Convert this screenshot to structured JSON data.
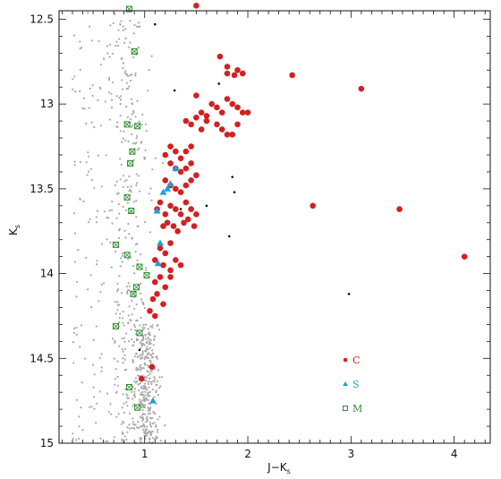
{
  "chart_data": {
    "type": "scatter",
    "title": "",
    "xlabel": {
      "main": "J−K",
      "sub": "s"
    },
    "ylabel": {
      "main": "K",
      "sub": "s"
    },
    "xlim": [
      0.17,
      4.35
    ],
    "ylim": [
      12.45,
      15.0
    ],
    "y_inverted": true,
    "xticks": [
      1,
      2,
      3,
      4
    ],
    "yticks": [
      12.5,
      13,
      13.5,
      14,
      14.5,
      15
    ],
    "ytick_labels": [
      "12.5",
      "13",
      "13.5",
      "14",
      "14.5",
      "15"
    ],
    "xtick_labels": [
      "1",
      "2",
      "3",
      "4"
    ],
    "grid": false,
    "legend_position": "bottom-right",
    "colors": {
      "C": "#d42020",
      "S": "#1fa0dc",
      "M": "#2e8b2e",
      "field": "#a8a8a8",
      "other": "#111111"
    },
    "series": [
      {
        "name": "C",
        "marker": "circle",
        "x": [
          1.5,
          1.73,
          1.8,
          1.8,
          1.9,
          1.95,
          1.87,
          2.43,
          3.1,
          1.5,
          1.55,
          1.6,
          1.65,
          1.7,
          1.75,
          1.8,
          1.85,
          1.9,
          1.95,
          2.0,
          1.4,
          1.45,
          1.5,
          1.55,
          1.6,
          1.7,
          1.75,
          1.8,
          1.85,
          1.9,
          1.25,
          1.3,
          1.35,
          1.4,
          1.45,
          1.2,
          1.25,
          1.3,
          1.35,
          1.4,
          1.45,
          1.2,
          1.25,
          1.3,
          1.35,
          1.4,
          1.45,
          1.5,
          1.12,
          1.15,
          1.2,
          1.25,
          1.3,
          1.35,
          1.4,
          1.45,
          1.5,
          1.18,
          1.22,
          1.28,
          1.32,
          1.38,
          1.42,
          1.48,
          1.15,
          1.2,
          1.25,
          1.1,
          1.18,
          1.25,
          1.3,
          1.35,
          1.1,
          1.15,
          1.2,
          1.25,
          1.08,
          1.12,
          1.18,
          1.05,
          1.1,
          1.07,
          0.97,
          2.63,
          3.47,
          4.1
        ],
        "y": [
          12.42,
          12.72,
          12.78,
          12.82,
          12.8,
          12.82,
          12.83,
          12.83,
          12.91,
          12.95,
          13.05,
          13.07,
          13.0,
          13.02,
          13.05,
          12.97,
          13.0,
          13.02,
          13.05,
          13.05,
          13.1,
          13.12,
          13.08,
          13.15,
          13.1,
          13.12,
          13.15,
          13.18,
          13.18,
          13.12,
          13.25,
          13.28,
          13.32,
          13.28,
          13.25,
          13.3,
          13.35,
          13.38,
          13.4,
          13.38,
          13.35,
          13.45,
          13.48,
          13.5,
          13.52,
          13.48,
          13.45,
          13.42,
          13.62,
          13.58,
          13.65,
          13.6,
          13.62,
          13.65,
          13.58,
          13.62,
          13.65,
          13.72,
          13.7,
          13.72,
          13.75,
          13.7,
          13.68,
          13.72,
          13.85,
          13.88,
          13.82,
          13.92,
          13.95,
          13.98,
          13.92,
          13.95,
          14.05,
          14.02,
          14.08,
          14.02,
          14.15,
          14.12,
          14.18,
          14.22,
          14.25,
          14.55,
          14.62,
          13.6,
          13.62,
          13.9
        ]
      },
      {
        "name": "S",
        "marker": "triangle",
        "x": [
          1.3,
          1.25,
          1.22,
          1.18,
          1.12,
          1.15,
          1.13,
          1.08
        ],
        "y": [
          13.38,
          13.47,
          13.5,
          13.52,
          13.63,
          13.82,
          13.94,
          14.75
        ]
      },
      {
        "name": "M",
        "marker": "open-square",
        "x": [
          0.85,
          0.9,
          0.83,
          0.93,
          0.88,
          0.86,
          0.83,
          0.87,
          0.72,
          0.83,
          0.95,
          1.02,
          0.92,
          0.89,
          0.72,
          0.95,
          0.85,
          0.93
        ],
        "y": [
          12.44,
          12.69,
          13.12,
          13.13,
          13.28,
          13.35,
          13.55,
          13.63,
          13.83,
          13.89,
          13.96,
          14.01,
          14.08,
          14.12,
          14.31,
          14.35,
          14.67,
          14.79
        ]
      },
      {
        "name": "field",
        "marker": "dot",
        "x": [],
        "y": []
      },
      {
        "name": "other",
        "marker": "dot",
        "x": [
          1.1,
          1.29,
          1.72,
          1.85,
          1.35,
          1.82,
          1.35,
          1.87,
          2.98,
          0.95,
          1.6
        ],
        "y": [
          12.53,
          12.92,
          12.88,
          13.43,
          13.95,
          13.78,
          13.62,
          13.52,
          14.12,
          14.45,
          13.6
        ]
      }
    ],
    "legend": [
      {
        "label": "C",
        "color": "#d42020"
      },
      {
        "label": "S",
        "color": "#1fa0dc"
      },
      {
        "label": "M",
        "color": "#2e8b2e"
      }
    ]
  }
}
